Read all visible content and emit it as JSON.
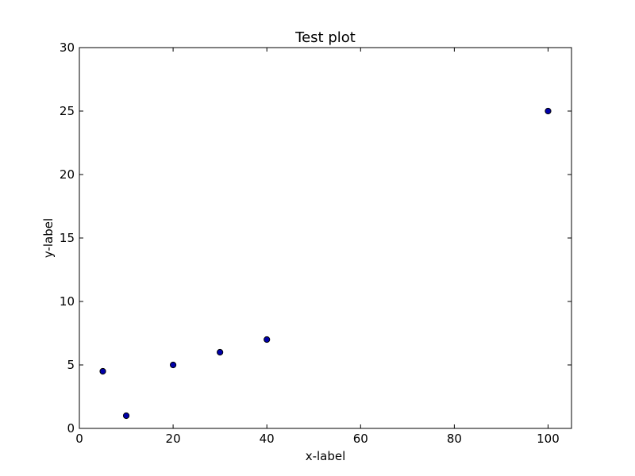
{
  "chart_data": {
    "type": "scatter",
    "title": "Test plot",
    "xlabel": "x-label",
    "ylabel": "y-label",
    "xlim": [
      0,
      105
    ],
    "ylim": [
      0,
      30
    ],
    "xticks": [
      0,
      20,
      40,
      60,
      80,
      100
    ],
    "yticks": [
      0,
      5,
      10,
      15,
      20,
      25,
      30
    ],
    "grid": false,
    "legend": "none",
    "marker_color": "#0000aa",
    "marker_edge_color": "#000000",
    "series": [
      {
        "x": [
          5,
          10,
          20,
          30,
          40,
          100
        ],
        "y": [
          4.5,
          1,
          5,
          6,
          7,
          25
        ]
      }
    ]
  }
}
